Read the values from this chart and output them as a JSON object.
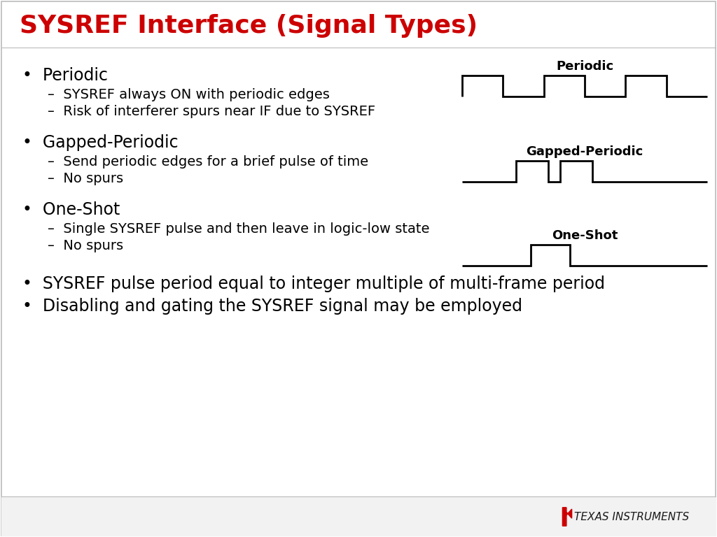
{
  "title": "SYSREF Interface (Signal Types)",
  "title_color": "#CC0000",
  "title_fontsize": 26,
  "title_fontweight": "bold",
  "bg_color": "#FFFFFF",
  "bullet_fontsize": 17,
  "sub_bullet_fontsize": 14,
  "signal_label_fontsize": 13,
  "signal_label_fontweight": "bold",
  "line_color": "#000000",
  "line_width": 2.0,
  "border_color": "#BBBBBB",
  "footer_bg": "#F2F2F2",
  "footer_text_color": "#1a1a1a",
  "ti_logo_color": "#CC0000",
  "bullet1_main": "Periodic",
  "bullet1_sub1": "SYSREF always ON with periodic edges",
  "bullet1_sub2": "Risk of interferer spurs near IF due to SYSREF",
  "bullet2_main": "Gapped-Periodic",
  "bullet2_sub1": "Send periodic edges for a brief pulse of time",
  "bullet2_sub2": "No spurs",
  "bullet3_main": "One-Shot",
  "bullet3_sub1": "Single SYSREF pulse and then leave in logic-low state",
  "bullet3_sub2": "No spurs",
  "extra1": "SYSREF pulse period equal to integer multiple of multi-frame period",
  "extra2": "Disabling and gating the SYSREF signal may be employed",
  "label_periodic": "Periodic",
  "label_gapped": "Gapped-Periodic",
  "label_oneshot": "One-Shot",
  "footer_company": "TEXAS INSTRUMENTS"
}
